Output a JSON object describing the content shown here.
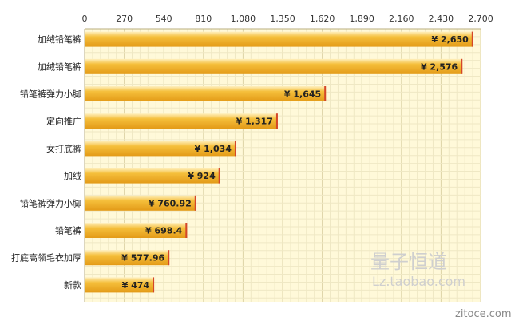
{
  "chart_data": {
    "type": "bar",
    "orientation": "horizontal",
    "categories": [
      "加绒铅笔裤",
      "加绒铅笔裤",
      "铅笔裤弹力小脚",
      "定向推广",
      "女打底裤",
      "加绒",
      "铅笔裤弹力小脚",
      "铅笔裤",
      "打底高领毛衣加厚",
      "新款"
    ],
    "values": [
      2650,
      2576,
      1645,
      1317,
      1034,
      924,
      760.92,
      698.4,
      577.96,
      474
    ],
    "value_labels": [
      "¥ 2,650",
      "¥ 2,576",
      "¥ 1,645",
      "¥ 1,317",
      "¥ 1,034",
      "¥ 924",
      "¥ 760.92",
      "¥ 698.4",
      "¥ 577.96",
      "¥ 474"
    ],
    "x_ticks": [
      "0",
      "270",
      "540",
      "810",
      "1,080",
      "1,350",
      "1,620",
      "1,890",
      "2,160",
      "2,430",
      "2,700"
    ],
    "xlim": [
      0,
      2700
    ],
    "grid": true,
    "axis_position": "top",
    "colors": {
      "plot_background": "#fff9d9",
      "grid_minor": "#efe8c4",
      "grid_major": "#dcd3a6",
      "bar_fill": "#f5bf3b",
      "bar_highlight": "#fff0bf",
      "bar_shadow": "#e39a17",
      "bar_end": "#d4462a"
    }
  },
  "watermark": {
    "brand": "量子恒道",
    "site": "Lz.taobao.com",
    "footer": "zitoce.com"
  }
}
